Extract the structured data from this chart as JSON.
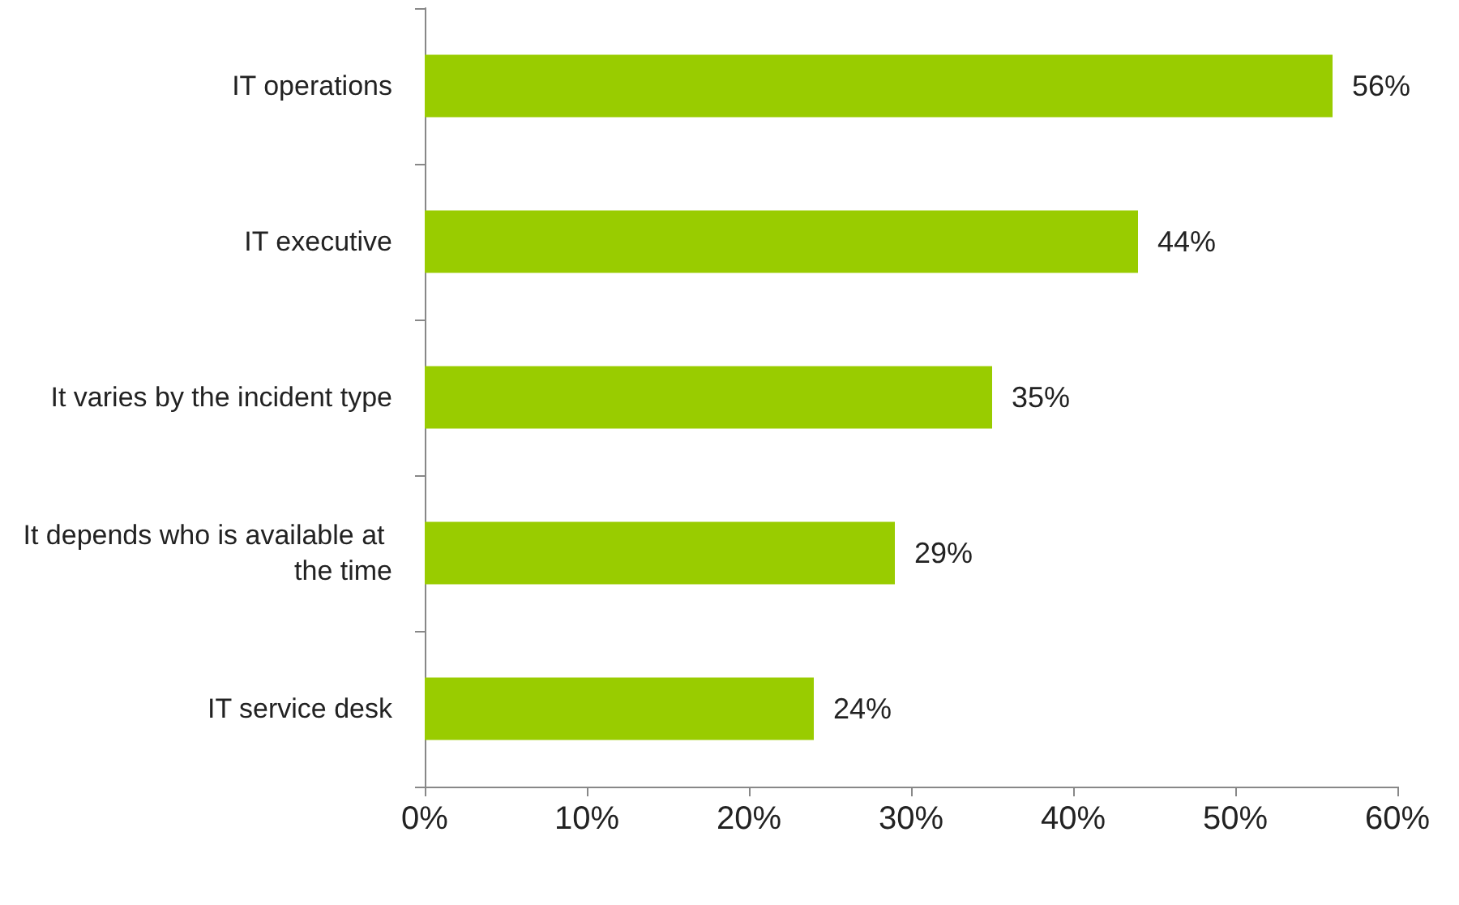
{
  "chart_data": {
    "type": "bar",
    "orientation": "horizontal",
    "categories": [
      "IT operations",
      "IT executive",
      "It varies by the incident type",
      "It depends who is available at the time",
      "IT service desk"
    ],
    "values": [
      56,
      44,
      35,
      29,
      24
    ],
    "value_labels": [
      "56%",
      "44%",
      "35%",
      "29%",
      "24%"
    ],
    "color": "#99cc00",
    "xlim": [
      0,
      60
    ],
    "xticks": [
      {
        "value": 0,
        "label": "0%"
      },
      {
        "value": 10,
        "label": "10%"
      },
      {
        "value": 20,
        "label": "20%"
      },
      {
        "value": 30,
        "label": "30%"
      },
      {
        "value": 40,
        "label": "40%"
      },
      {
        "value": 50,
        "label": "50%"
      },
      {
        "value": 60,
        "label": "60%"
      }
    ],
    "grid": false
  }
}
